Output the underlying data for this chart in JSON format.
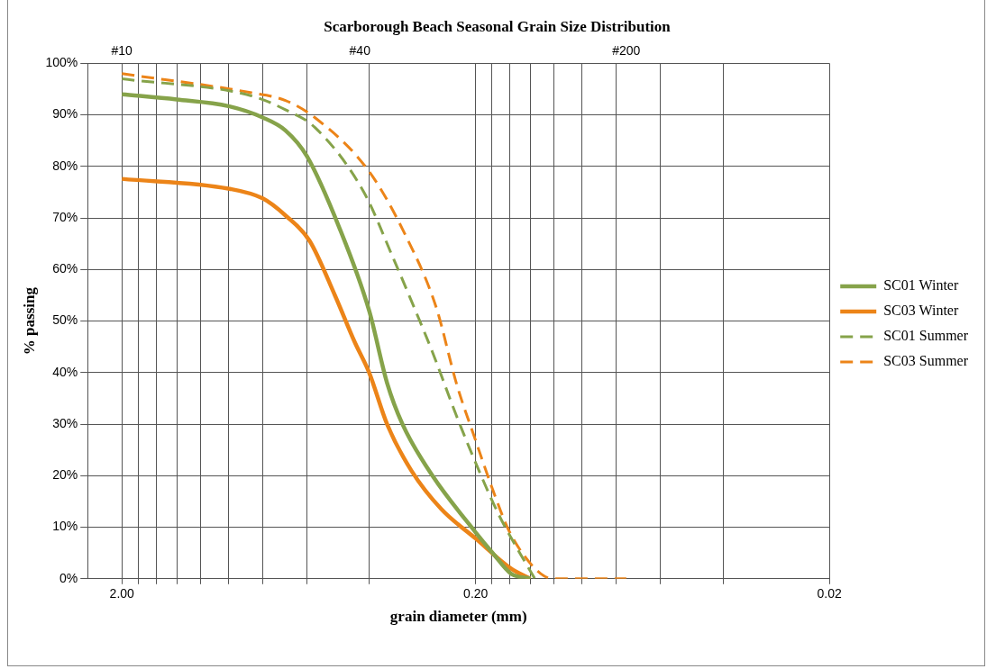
{
  "chart_data": {
    "type": "line",
    "title": "Scarborough Beach Seasonal Grain Size Distribution",
    "xlabel": "grain diameter (mm)",
    "ylabel": "% passing",
    "log": "x",
    "xlim": [
      2.5,
      0.02
    ],
    "ylim": [
      0,
      100
    ],
    "xticks": [
      {
        "value": 2.0,
        "label": "2.00"
      },
      {
        "value": 1.8,
        "label": null
      },
      {
        "value": 1.6,
        "label": null
      },
      {
        "value": 1.4,
        "label": null
      },
      {
        "value": 1.2,
        "label": null
      },
      {
        "value": 1.0,
        "label": null
      },
      {
        "value": 0.8,
        "label": null
      },
      {
        "value": 0.6,
        "label": null
      },
      {
        "value": 0.4,
        "label": null
      },
      {
        "value": 0.2,
        "label": "0.20"
      },
      {
        "value": 0.18,
        "label": null
      },
      {
        "value": 0.16,
        "label": null
      },
      {
        "value": 0.14,
        "label": null
      },
      {
        "value": 0.12,
        "label": null
      },
      {
        "value": 0.1,
        "label": null
      },
      {
        "value": 0.08,
        "label": null
      },
      {
        "value": 0.06,
        "label": null
      },
      {
        "value": 0.04,
        "label": null
      },
      {
        "value": 0.02,
        "label": "0.02"
      }
    ],
    "annotations": [
      "#10",
      "#40",
      "#200"
    ],
    "yticks": [
      {
        "value": 0,
        "label": "0%"
      },
      {
        "value": 10,
        "label": "10%"
      },
      {
        "value": 20,
        "label": "20%"
      },
      {
        "value": 30,
        "label": "30%"
      },
      {
        "value": 40,
        "label": "40%"
      },
      {
        "value": 50,
        "label": "50%"
      },
      {
        "value": 60,
        "label": "60%"
      },
      {
        "value": 70,
        "label": "70%"
      },
      {
        "value": 80,
        "label": "80%"
      },
      {
        "value": 90,
        "label": "90%"
      },
      {
        "value": 100,
        "label": "100%"
      }
    ],
    "grid": true,
    "legend": "right",
    "marker": "none",
    "series": [
      {
        "name": "SC01 Winter",
        "color": "#86a34a",
        "line_style": "solid",
        "x": [
          2.0,
          1.4,
          1.0,
          0.8,
          0.69,
          0.6,
          0.485,
          0.4,
          0.356,
          0.322,
          0.265,
          0.2,
          0.179,
          0.159,
          0.14
        ],
        "values": [
          94,
          93,
          91.7,
          89.5,
          87,
          82,
          68,
          52,
          38,
          30,
          20,
          9,
          5,
          1,
          0
        ]
      },
      {
        "name": "SC03 Winter",
        "color": "#ec8418",
        "line_style": "solid",
        "x": [
          2.0,
          1.0,
          0.8,
          0.69,
          0.59,
          0.5,
          0.44,
          0.4,
          0.356,
          0.304,
          0.25,
          0.2,
          0.159,
          0.14
        ],
        "values": [
          77.6,
          75.7,
          73.8,
          70.5,
          65.6,
          55,
          46,
          40,
          30,
          21,
          13.5,
          7.8,
          2,
          0
        ]
      },
      {
        "name": "SC01 Summer",
        "color": "#86a34a",
        "line_style": "dashed",
        "x": [
          2.0,
          0.86,
          0.69,
          0.57,
          0.414,
          0.341,
          0.3,
          0.265,
          0.226,
          0.193,
          0.172,
          0.153,
          0.136
        ],
        "values": [
          97,
          93.7,
          91,
          87.6,
          75,
          62,
          53,
          44,
          31.4,
          20,
          12.4,
          6,
          0
        ]
      },
      {
        "name": "SC03 Summer",
        "color": "#ec8418",
        "line_style": "dashed",
        "x": [
          2.0,
          0.86,
          0.69,
          0.57,
          0.4,
          0.316,
          0.259,
          0.226,
          0.2,
          0.179,
          0.162,
          0.147,
          0.131,
          0.121,
          0.075
        ],
        "values": [
          98,
          94.3,
          92.8,
          89.5,
          79,
          66.7,
          52.8,
          37.6,
          26.8,
          17.3,
          9.7,
          4.8,
          1,
          0,
          0
        ]
      }
    ]
  }
}
